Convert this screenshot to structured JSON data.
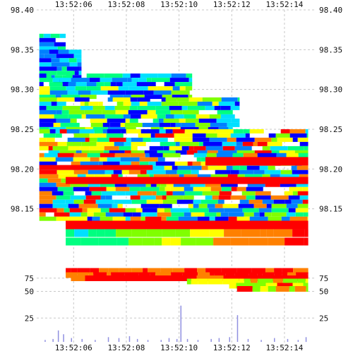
{
  "chart_data": [
    {
      "type": "heatmap",
      "title": "",
      "xlabel": "",
      "ylabel": "",
      "x_ticks": [
        "13:52:06",
        "13:52:08",
        "13:52:10",
        "13:52:12",
        "13:52:14"
      ],
      "x_tick_seconds": [
        6,
        8,
        10,
        12,
        14
      ],
      "xlim_seconds": [
        4.6,
        15.1
      ],
      "y_ticks": [
        98.4,
        98.35,
        98.3,
        98.25,
        98.2,
        98.15
      ],
      "ylim": [
        98.115,
        98.4
      ],
      "grid": true,
      "color_scale": [
        "#0000ff",
        "#0080ff",
        "#00e0ff",
        "#00ff80",
        "#80ff00",
        "#ffff00",
        "#ff8000",
        "#ff0000"
      ],
      "band_ranges": [
        {
          "from_price": 98.35,
          "to_price": 98.37,
          "start_s": 4.7,
          "end_s": 5.7
        },
        {
          "from_price": 98.31,
          "to_price": 98.35,
          "start_s": 4.7,
          "end_s": 6.3
        },
        {
          "from_price": 98.29,
          "to_price": 98.32,
          "start_s": 4.7,
          "end_s": 10.5
        },
        {
          "from_price": 98.25,
          "to_price": 98.29,
          "start_s": 4.7,
          "end_s": 12.3
        },
        {
          "from_price": 98.22,
          "to_price": 98.25,
          "start_s": 4.7,
          "end_s": 14.9
        },
        {
          "from_price": 98.14,
          "to_price": 98.22,
          "start_s": 4.7,
          "end_s": 14.9
        }
      ]
    },
    {
      "type": "heatmap",
      "title": "",
      "xlabel": "",
      "ylabel": "",
      "x_ticks": [
        "13:52:06",
        "13:52:08",
        "13:52:10",
        "13:52:12",
        "13:52:14"
      ],
      "xlim_seconds": [
        4.6,
        15.1
      ],
      "y_ticks": [
        75,
        50
      ],
      "ylim": [
        0,
        100
      ],
      "rows": [
        {
          "level": 94,
          "start_s": 5.7,
          "end_s": 14.9
        },
        {
          "level": 86,
          "start_s": 5.7,
          "end_s": 14.9
        },
        {
          "level": 80,
          "start_s": 5.9,
          "end_s": 14.9
        },
        {
          "level": 74,
          "start_s": 10.3,
          "end_s": 14.9
        },
        {
          "level": 66,
          "start_s": 11.9,
          "end_s": 14.9
        },
        {
          "level": 60,
          "start_s": 12.2,
          "end_s": 14.9
        }
      ]
    },
    {
      "type": "bar",
      "title": "",
      "xlabel": "",
      "ylabel": "",
      "y_ticks": [
        25
      ],
      "ylim": [
        0,
        40
      ],
      "x_seconds": [
        4.9,
        5.2,
        5.4,
        5.6,
        5.9,
        6.3,
        6.8,
        7.3,
        7.7,
        8.1,
        8.4,
        8.8,
        9.3,
        9.6,
        9.9,
        10.05,
        10.3,
        10.7,
        11.2,
        11.5,
        11.9,
        12.2,
        12.6,
        13.1,
        13.6,
        14.1,
        14.5,
        14.8
      ],
      "values": [
        2,
        3,
        12,
        8,
        4,
        3,
        2,
        5,
        4,
        6,
        3,
        2,
        2,
        4,
        3,
        38,
        3,
        2,
        3,
        4,
        5,
        28,
        3,
        2,
        4,
        3,
        2,
        5
      ]
    }
  ]
}
